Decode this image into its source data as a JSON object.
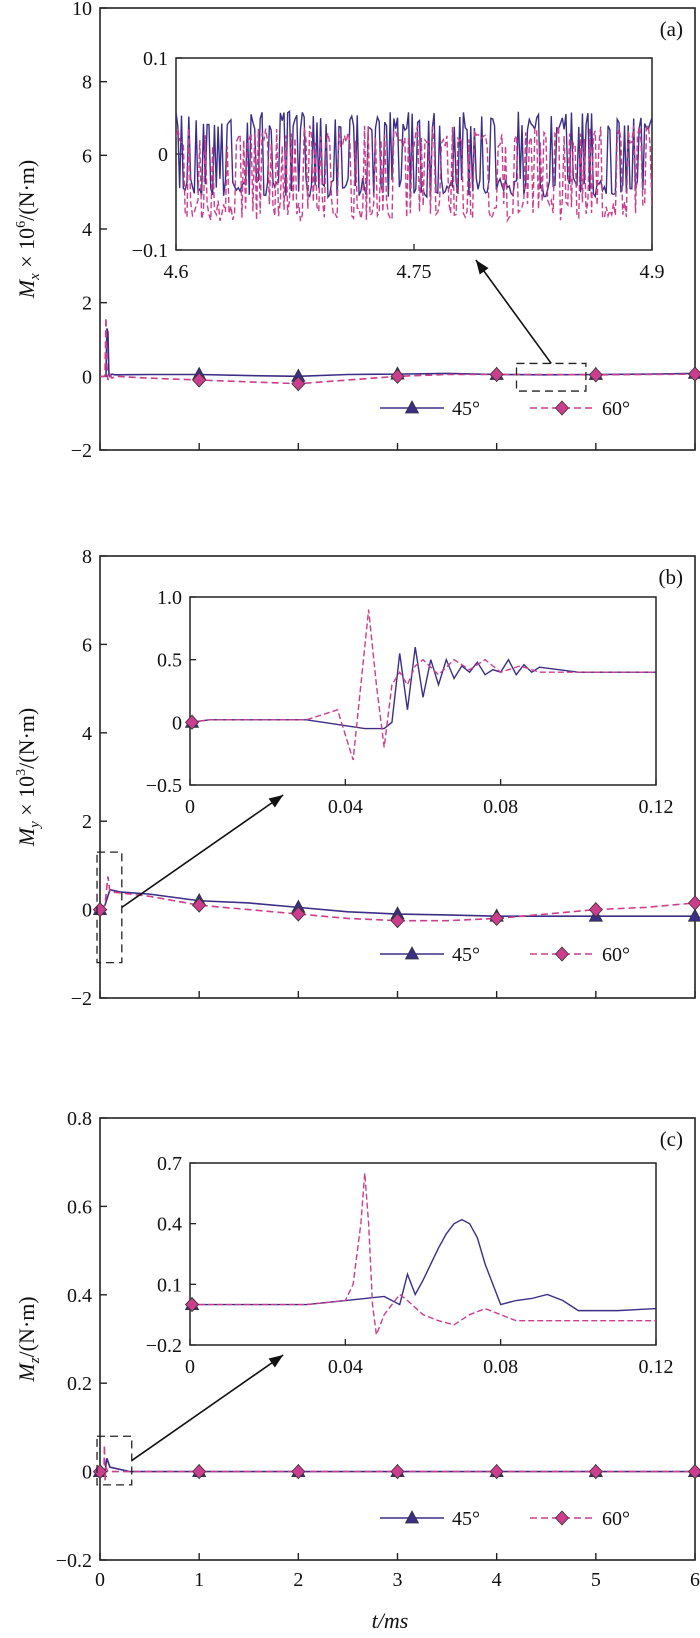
{
  "figure": {
    "xlabel": "t/ms"
  },
  "colors": {
    "s45": "#3b2e86",
    "s60": "#cc3d8e",
    "axis": "#222222"
  },
  "chart_data": [
    {
      "type": "line",
      "panel": "(a)",
      "ylabel": "Mx × 10^6/(N·m)",
      "ylabel_parts": {
        "symbol": "M",
        "sub": "x",
        "mid": " × 10",
        "sup": "6",
        "unit": "/(N·m)"
      },
      "xlim": [
        0,
        6
      ],
      "ylim": [
        -2,
        10
      ],
      "x_ticks": [
        "0",
        "1",
        "2",
        "3",
        "4",
        "5",
        "6"
      ],
      "y_ticks": [
        "−2",
        "0",
        "2",
        "4",
        "6",
        "8",
        "10"
      ],
      "legend": [
        "45°",
        "60°"
      ],
      "legend_position": "bottom-right",
      "series": [
        {
          "name": "45°",
          "marker": "triangle",
          "markers_at": [
            1,
            2,
            3,
            4,
            5,
            6
          ],
          "x": [
            0,
            0.06,
            0.07,
            0.08,
            0.09,
            0.1,
            0.12,
            0.15,
            0.5,
            1,
            1.5,
            2,
            2.5,
            3,
            3.5,
            4,
            4.5,
            5,
            5.5,
            6
          ],
          "y": [
            0,
            0,
            1.3,
            1.2,
            0.05,
            0.0,
            0.06,
            0.04,
            0.05,
            0.05,
            0.02,
            0.0,
            0.05,
            0.06,
            0.08,
            0.05,
            0.04,
            0.05,
            0.06,
            0.08
          ]
        },
        {
          "name": "60°",
          "marker": "diamond",
          "markers_at": [
            1,
            2,
            3,
            4,
            5,
            6
          ],
          "x": [
            0,
            0.05,
            0.06,
            0.07,
            0.08,
            0.1,
            0.12,
            0.15,
            0.5,
            1,
            1.5,
            2,
            2.5,
            3,
            3.5,
            4,
            4.5,
            5,
            5.5,
            6
          ],
          "y": [
            0,
            0,
            1.6,
            0.3,
            -0.1,
            0.05,
            -0.05,
            0.0,
            -0.05,
            -0.1,
            -0.15,
            -0.2,
            -0.1,
            0.0,
            0.05,
            0.05,
            0.05,
            0.04,
            0.05,
            0.06
          ]
        }
      ],
      "inset": {
        "xlim": [
          4.6,
          4.9
        ],
        "ylim": [
          -0.1,
          0.1
        ],
        "x_ticks": [
          "4.6",
          "4.75",
          "4.9"
        ],
        "y_ticks": [
          "−0.1",
          "0",
          "0.1"
        ],
        "zoom_x": [
          4.2,
          4.9
        ],
        "zoom_y": [
          -0.4,
          0.35
        ],
        "series": [
          {
            "name": "45°",
            "x": [
              4.6,
              4.9
            ],
            "noise_center": 0.0,
            "noise_amp": 0.045
          },
          {
            "name": "60°",
            "x": [
              4.6,
              4.9
            ],
            "noise_center": -0.02,
            "noise_amp": 0.05
          }
        ]
      }
    },
    {
      "type": "line",
      "panel": "(b)",
      "ylabel": "My × 10^3/(N·m)",
      "ylabel_parts": {
        "symbol": "M",
        "sub": "y",
        "mid": " × 10",
        "sup": "3",
        "unit": "/(N·m)"
      },
      "xlim": [
        0,
        6
      ],
      "ylim": [
        -2,
        8
      ],
      "x_ticks": [
        "0",
        "1",
        "2",
        "3",
        "4",
        "5",
        "6"
      ],
      "y_ticks": [
        "−2",
        "0",
        "2",
        "4",
        "6",
        "8"
      ],
      "legend": [
        "45°",
        "60°"
      ],
      "legend_position": "bottom-right",
      "series": [
        {
          "name": "45°",
          "marker": "triangle",
          "markers_at": [
            0,
            1,
            2,
            3,
            4,
            5,
            6
          ],
          "x": [
            0,
            0.05,
            0.1,
            0.2,
            0.5,
            1,
            1.5,
            2,
            2.5,
            3,
            3.5,
            4,
            4.5,
            5,
            5.5,
            6
          ],
          "y": [
            0,
            0.1,
            0.45,
            0.4,
            0.35,
            0.2,
            0.15,
            0.05,
            -0.05,
            -0.1,
            -0.12,
            -0.15,
            -0.15,
            -0.15,
            -0.15,
            -0.15
          ]
        },
        {
          "name": "60°",
          "marker": "diamond",
          "markers_at": [
            0,
            1,
            2,
            3,
            4,
            5,
            6
          ],
          "x": [
            0,
            0.05,
            0.08,
            0.1,
            0.2,
            0.5,
            1,
            1.5,
            2,
            2.5,
            3,
            3.5,
            4,
            4.5,
            5,
            5.5,
            6
          ],
          "y": [
            0,
            0.1,
            0.75,
            0.4,
            0.38,
            0.3,
            0.1,
            0.0,
            -0.1,
            -0.2,
            -0.25,
            -0.25,
            -0.2,
            -0.1,
            0.0,
            0.05,
            0.15
          ]
        }
      ],
      "inset": {
        "xlim": [
          0,
          0.12
        ],
        "ylim": [
          -0.5,
          1.0
        ],
        "x_ticks": [
          "0",
          "0.04",
          "0.08",
          "0.12"
        ],
        "y_ticks": [
          "−0.5",
          "0",
          "0.5",
          "1.0"
        ],
        "zoom_x": [
          -0.03,
          0.22
        ],
        "zoom_y": [
          -1.2,
          1.3
        ],
        "series": [
          {
            "name": "45°",
            "x": [
              0,
              0.005,
              0.03,
              0.045,
              0.05,
              0.052,
              0.054,
              0.056,
              0.058,
              0.06,
              0.062,
              0.064,
              0.066,
              0.068,
              0.07,
              0.072,
              0.074,
              0.076,
              0.078,
              0.08,
              0.082,
              0.084,
              0.086,
              0.088,
              0.09,
              0.095,
              0.1,
              0.12
            ],
            "y": [
              0.0,
              0.02,
              0.02,
              -0.05,
              -0.05,
              0.0,
              0.55,
              0.1,
              0.6,
              0.2,
              0.5,
              0.3,
              0.5,
              0.35,
              0.45,
              0.4,
              0.48,
              0.38,
              0.42,
              0.4,
              0.5,
              0.38,
              0.46,
              0.4,
              0.44,
              0.42,
              0.4,
              0.4
            ]
          },
          {
            "name": "60°",
            "x": [
              0,
              0.005,
              0.03,
              0.038,
              0.042,
              0.044,
              0.046,
              0.048,
              0.05,
              0.052,
              0.054,
              0.056,
              0.058,
              0.06,
              0.064,
              0.068,
              0.072,
              0.076,
              0.08,
              0.085,
              0.09,
              0.1,
              0.12
            ],
            "y": [
              0.0,
              0.02,
              0.02,
              0.1,
              -0.3,
              0.3,
              0.9,
              0.3,
              -0.2,
              0.3,
              0.4,
              0.3,
              0.45,
              0.5,
              0.38,
              0.5,
              0.42,
              0.5,
              0.4,
              0.45,
              0.4,
              0.4,
              0.4
            ]
          }
        ]
      }
    },
    {
      "type": "line",
      "panel": "(c)",
      "ylabel": "Mz/(N·m)",
      "ylabel_parts": {
        "symbol": "M",
        "sub": "z",
        "mid": "",
        "sup": "",
        "unit": "/(N·m)"
      },
      "xlim": [
        0,
        6
      ],
      "ylim": [
        -0.2,
        0.8
      ],
      "x_ticks": [
        "0",
        "1",
        "2",
        "3",
        "4",
        "5",
        "6"
      ],
      "y_ticks": [
        "−0.2",
        "0",
        "0.2",
        "0.4",
        "0.6",
        "0.8"
      ],
      "legend": [
        "45°",
        "60°"
      ],
      "legend_position": "bottom-right",
      "series": [
        {
          "name": "45°",
          "marker": "triangle",
          "markers_at": [
            0,
            1,
            2,
            3,
            4,
            5,
            6
          ],
          "x": [
            0,
            0.05,
            0.07,
            0.1,
            0.3,
            1,
            2,
            3,
            4,
            5,
            6
          ],
          "y": [
            0,
            0,
            0.03,
            0.01,
            0,
            0,
            0,
            0,
            0,
            0,
            0
          ]
        },
        {
          "name": "60°",
          "marker": "diamond",
          "markers_at": [
            0,
            1,
            2,
            3,
            4,
            5,
            6
          ],
          "x": [
            0,
            0.04,
            0.045,
            0.05,
            0.06,
            0.08,
            0.3,
            1,
            2,
            3,
            4,
            5,
            6
          ],
          "y": [
            0,
            0,
            0.06,
            -0.02,
            0.01,
            0,
            0,
            0,
            0,
            0,
            0,
            0,
            0
          ]
        }
      ],
      "inset": {
        "xlim": [
          0,
          0.12
        ],
        "ylim": [
          -0.2,
          0.7
        ],
        "x_ticks": [
          "0",
          "0.04",
          "0.08",
          "0.12"
        ],
        "y_ticks": [
          "−0.2",
          "0.1",
          "0.4",
          "0.7"
        ],
        "zoom_x": [
          -0.03,
          0.32
        ],
        "zoom_y": [
          -0.03,
          0.08
        ],
        "series": [
          {
            "name": "45°",
            "x": [
              0,
              0.03,
              0.04,
              0.05,
              0.054,
              0.056,
              0.058,
              0.06,
              0.062,
              0.064,
              0.066,
              0.068,
              0.07,
              0.072,
              0.074,
              0.076,
              0.078,
              0.08,
              0.084,
              0.088,
              0.092,
              0.096,
              0.1,
              0.11,
              0.12
            ],
            "y": [
              0.0,
              0.0,
              0.02,
              0.04,
              0.0,
              0.15,
              0.05,
              0.12,
              0.2,
              0.28,
              0.35,
              0.4,
              0.42,
              0.4,
              0.33,
              0.2,
              0.1,
              0.0,
              0.02,
              0.03,
              0.05,
              0.02,
              -0.03,
              -0.03,
              -0.02
            ]
          },
          {
            "name": "60°",
            "x": [
              0,
              0.03,
              0.04,
              0.042,
              0.044,
              0.045,
              0.046,
              0.047,
              0.048,
              0.05,
              0.054,
              0.056,
              0.06,
              0.064,
              0.068,
              0.072,
              0.076,
              0.08,
              0.084,
              0.09,
              0.1,
              0.12
            ],
            "y": [
              0.0,
              0.0,
              0.02,
              0.1,
              0.4,
              0.65,
              0.4,
              0.0,
              -0.15,
              -0.05,
              0.05,
              0.02,
              -0.05,
              -0.08,
              -0.1,
              -0.05,
              -0.02,
              -0.05,
              -0.08,
              -0.08,
              -0.08,
              -0.08
            ]
          }
        ]
      }
    }
  ]
}
